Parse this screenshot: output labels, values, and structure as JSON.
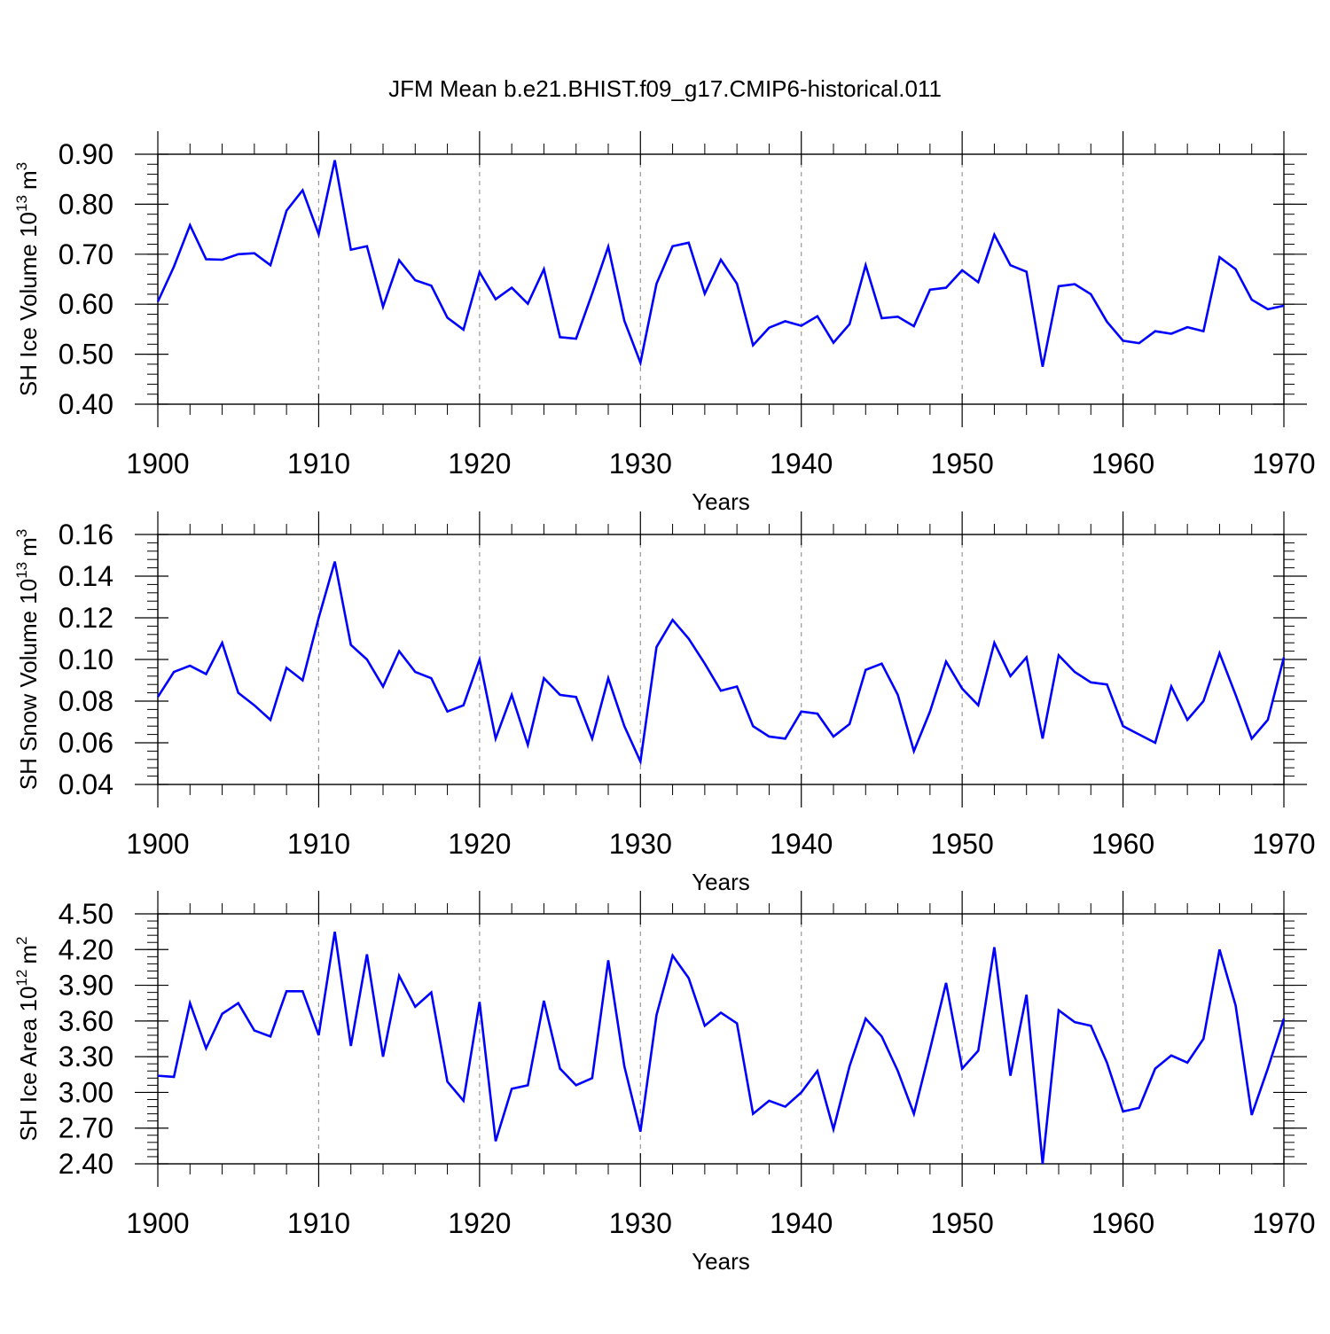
{
  "title": "JFM Mean b.e21.BHIST.f09_g17.CMIP6-historical.011",
  "colors": {
    "line": "#0000ff",
    "axis": "#000000",
    "grid": "#999999",
    "background": "#ffffff"
  },
  "chart_data": [
    {
      "type": "line",
      "title": "JFM Mean b.e21.BHIST.f09_g17.CMIP6-historical.011",
      "xlabel": "Years",
      "ylabel": "SH Ice Volume 10",
      "ylabel_exp": "13",
      "ylabel_unit": "m",
      "ylabel_unit_exp": "3",
      "xlim": [
        1900,
        1970
      ],
      "ylim": [
        0.4,
        0.9
      ],
      "xticks": [
        1900,
        1910,
        1920,
        1930,
        1940,
        1950,
        1960,
        1970
      ],
      "xtick_labels": [
        "1900",
        "1910",
        "1920",
        "1930",
        "1940",
        "1950",
        "1960",
        "1970"
      ],
      "yticks": [
        0.4,
        0.5,
        0.6,
        0.7,
        0.8,
        0.9
      ],
      "ytick_labels": [
        "0.40",
        "0.50",
        "0.60",
        "0.70",
        "0.80",
        "0.90"
      ],
      "yminor_step": 0.02,
      "grid_x": true,
      "x_start": 1900,
      "values": [
        0.605,
        0.675,
        0.758,
        0.69,
        0.689,
        0.7,
        0.702,
        0.678,
        0.787,
        0.828,
        0.74,
        0.888,
        0.709,
        0.716,
        0.595,
        0.688,
        0.648,
        0.637,
        0.573,
        0.549,
        0.664,
        0.61,
        0.633,
        0.601,
        0.67,
        0.534,
        0.531,
        0.621,
        0.715,
        0.567,
        0.483,
        0.641,
        0.716,
        0.723,
        0.621,
        0.689,
        0.641,
        0.518,
        0.553,
        0.566,
        0.557,
        0.576,
        0.523,
        0.56,
        0.678,
        0.572,
        0.575,
        0.556,
        0.629,
        0.633,
        0.668,
        0.644,
        0.739,
        0.678,
        0.665,
        0.475,
        0.636,
        0.64,
        0.62,
        0.565,
        0.527,
        0.522,
        0.546,
        0.541,
        0.554,
        0.546,
        0.694,
        0.67,
        0.609,
        0.59,
        0.597
      ]
    },
    {
      "type": "line",
      "xlabel": "Years",
      "ylabel": "SH Snow Volume 10",
      "ylabel_exp": "13",
      "ylabel_unit": "m",
      "ylabel_unit_exp": "3",
      "xlim": [
        1900,
        1970
      ],
      "ylim": [
        0.04,
        0.16
      ],
      "xticks": [
        1900,
        1910,
        1920,
        1930,
        1940,
        1950,
        1960,
        1970
      ],
      "xtick_labels": [
        "1900",
        "1910",
        "1920",
        "1930",
        "1940",
        "1950",
        "1960",
        "1970"
      ],
      "yticks": [
        0.04,
        0.06,
        0.08,
        0.1,
        0.12,
        0.14,
        0.16
      ],
      "ytick_labels": [
        "0.04",
        "0.06",
        "0.08",
        "0.10",
        "0.12",
        "0.14",
        "0.16"
      ],
      "yminor_step": 0.004,
      "grid_x": true,
      "x_start": 1900,
      "values": [
        0.082,
        0.094,
        0.097,
        0.093,
        0.108,
        0.084,
        0.078,
        0.071,
        0.096,
        0.09,
        0.12,
        0.147,
        0.107,
        0.1,
        0.087,
        0.104,
        0.094,
        0.091,
        0.075,
        0.078,
        0.1,
        0.062,
        0.083,
        0.059,
        0.091,
        0.083,
        0.082,
        0.062,
        0.091,
        0.068,
        0.051,
        0.106,
        0.119,
        0.11,
        0.098,
        0.085,
        0.087,
        0.068,
        0.063,
        0.062,
        0.075,
        0.074,
        0.063,
        0.069,
        0.095,
        0.098,
        0.083,
        0.056,
        0.075,
        0.099,
        0.086,
        0.078,
        0.108,
        0.092,
        0.101,
        0.062,
        0.102,
        0.094,
        0.089,
        0.088,
        0.068,
        0.064,
        0.06,
        0.087,
        0.071,
        0.08,
        0.103,
        0.083,
        0.062,
        0.071,
        0.101
      ]
    },
    {
      "type": "line",
      "xlabel": "Years",
      "ylabel": "SH Ice Area 10",
      "ylabel_exp": "12",
      "ylabel_unit": "m",
      "ylabel_unit_exp": "2",
      "xlim": [
        1900,
        1970
      ],
      "ylim": [
        2.4,
        4.5
      ],
      "xticks": [
        1900,
        1910,
        1920,
        1930,
        1940,
        1950,
        1960,
        1970
      ],
      "xtick_labels": [
        "1900",
        "1910",
        "1920",
        "1930",
        "1940",
        "1950",
        "1960",
        "1970"
      ],
      "yticks": [
        2.4,
        2.7,
        3.0,
        3.3,
        3.6,
        3.9,
        4.2,
        4.5
      ],
      "ytick_labels": [
        "2.40",
        "2.70",
        "3.00",
        "3.30",
        "3.60",
        "3.90",
        "4.20",
        "4.50"
      ],
      "yminor_step": 0.06,
      "grid_x": true,
      "x_start": 1900,
      "values": [
        3.14,
        3.13,
        3.75,
        3.37,
        3.66,
        3.75,
        3.52,
        3.47,
        3.85,
        3.85,
        3.48,
        4.35,
        3.39,
        4.16,
        3.3,
        3.98,
        3.72,
        3.84,
        3.09,
        2.93,
        3.76,
        2.59,
        3.03,
        3.06,
        3.77,
        3.2,
        3.06,
        3.12,
        4.11,
        3.22,
        2.67,
        3.65,
        4.15,
        3.96,
        3.56,
        3.67,
        3.58,
        2.82,
        2.93,
        2.88,
        3.0,
        3.18,
        2.69,
        3.22,
        3.62,
        3.47,
        3.18,
        2.82,
        3.36,
        3.92,
        3.2,
        3.35,
        4.22,
        3.14,
        3.82,
        2.4,
        3.69,
        3.59,
        3.56,
        3.25,
        2.84,
        2.87,
        3.2,
        3.31,
        3.25,
        3.45,
        4.2,
        3.73,
        2.81,
        3.2,
        3.62
      ]
    }
  ]
}
